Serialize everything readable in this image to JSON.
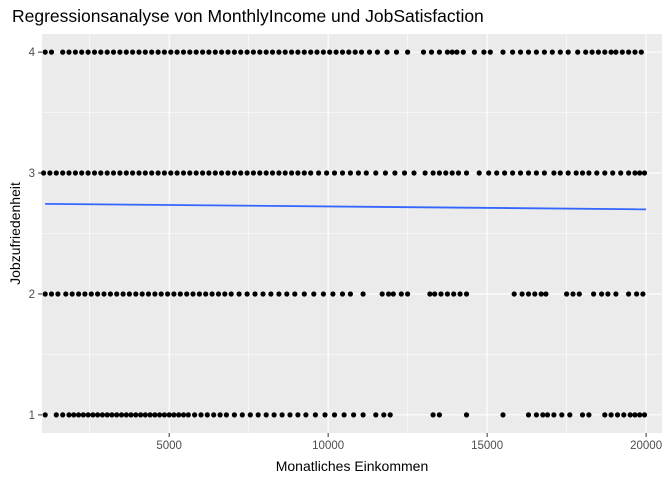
{
  "chart_data": {
    "type": "scatter",
    "title": "Regressionsanalyse von MonthlyIncome und JobSatisfaction",
    "xlabel": "Monatliches Einkommen",
    "ylabel": "Jobzufriedenheit",
    "xlim": [
      1000,
      20500
    ],
    "ylim": [
      0.85,
      4.15
    ],
    "x_ticks": [
      5000,
      10000,
      15000,
      20000
    ],
    "y_ticks": [
      1,
      2,
      3,
      4
    ],
    "grid": true,
    "legend": "none",
    "colors": {
      "panel_bg": "#EBEBEB",
      "grid": "#FFFFFF",
      "points": "#000000",
      "regression_line": "#3366FF"
    },
    "series": [
      {
        "type": "scatter",
        "points_by_level": [
          {
            "y": 1,
            "x": [
              1100,
              1450,
              1650,
              1850,
              2000,
              2150,
              2300,
              2450,
              2600,
              2750,
              2900,
              3050,
              3200,
              3350,
              3500,
              3650,
              3800,
              3950,
              4100,
              4250,
              4400,
              4550,
              4700,
              4850,
              5000,
              5150,
              5300,
              5450,
              5600,
              5800,
              6000,
              6200,
              6400,
              6600,
              6800,
              7050,
              7300,
              7550,
              7800,
              8050,
              8300,
              8550,
              8800,
              9050,
              9300,
              9600,
              9900,
              10200,
              10500,
              10800,
              11100,
              11500,
              11750,
              11950,
              13300,
              13500,
              14350,
              15500,
              16300,
              16550,
              16750,
              16900,
              17100,
              17350,
              17600,
              18000,
              18200,
              18700,
              18900,
              19100,
              19300,
              19500,
              19650,
              19800,
              19950
            ]
          },
          {
            "y": 2,
            "x": [
              1100,
              1300,
              1500,
              1750,
              1950,
              2150,
              2350,
              2550,
              2750,
              2950,
              3150,
              3350,
              3550,
              3750,
              3950,
              4150,
              4350,
              4550,
              4750,
              4950,
              5150,
              5350,
              5550,
              5750,
              5950,
              6150,
              6350,
              6550,
              6750,
              6950,
              7200,
              7450,
              7700,
              7950,
              8200,
              8450,
              8700,
              8950,
              9250,
              9550,
              9850,
              10150,
              10450,
              10700,
              11100,
              11700,
              11900,
              12050,
              12300,
              12500,
              13200,
              13350,
              13550,
              13750,
              13950,
              14150,
              14350,
              15850,
              16100,
              16300,
              16500,
              16700,
              16850,
              17500,
              17700,
              17900,
              18350,
              18600,
              18800,
              19050,
              19450,
              19700,
              19900
            ]
          },
          {
            "y": 3,
            "x": [
              1050,
              1250,
              1450,
              1650,
              1850,
              2050,
              2250,
              2450,
              2650,
              2850,
              3050,
              3250,
              3450,
              3650,
              3850,
              4050,
              4250,
              4450,
              4650,
              4850,
              5050,
              5250,
              5450,
              5650,
              5850,
              6050,
              6250,
              6450,
              6650,
              6850,
              7050,
              7250,
              7450,
              7650,
              7850,
              8050,
              8250,
              8450,
              8650,
              8850,
              9050,
              9250,
              9450,
              9700,
              9950,
              10200,
              10450,
              10700,
              10950,
              11200,
              11500,
              11800,
              12100,
              12400,
              12700,
              13050,
              13300,
              13500,
              13700,
              13900,
              14100,
              14350,
              14750,
              15050,
              15300,
              15550,
              15800,
              16050,
              16300,
              16550,
              16800,
              17100,
              17300,
              17550,
              17800,
              18000,
              18200,
              18450,
              18700,
              18950,
              19200,
              19450,
              19650,
              19800,
              19950
            ]
          },
          {
            "y": 4,
            "x": [
              1100,
              1300,
              1650,
              1850,
              2050,
              2250,
              2450,
              2650,
              2850,
              3050,
              3250,
              3450,
              3650,
              3850,
              4050,
              4250,
              4450,
              4650,
              4850,
              5050,
              5250,
              5450,
              5650,
              5850,
              6050,
              6250,
              6450,
              6650,
              6850,
              7050,
              7250,
              7450,
              7650,
              7850,
              8050,
              8250,
              8450,
              8650,
              8850,
              9050,
              9250,
              9450,
              9650,
              9850,
              10050,
              10250,
              10450,
              10650,
              10850,
              11050,
              11300,
              11550,
              11850,
              12150,
              12500,
              13000,
              13250,
              13500,
              13750,
              13900,
              14050,
              14250,
              14600,
              14900,
              15100,
              15500,
              15800,
              16050,
              16300,
              16550,
              16800,
              17050,
              17300,
              17550,
              17850,
              18100,
              18300,
              18500,
              18700,
              18900,
              19050,
              19250,
              19450,
              19650,
              19850
            ]
          }
        ]
      },
      {
        "type": "line",
        "x": [
          1100,
          20000
        ],
        "y": [
          2.745,
          2.7
        ]
      }
    ]
  }
}
